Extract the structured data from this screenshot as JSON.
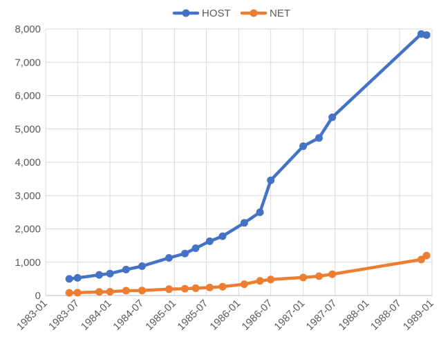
{
  "chart_data": {
    "type": "line",
    "title": "",
    "xlabel": "",
    "ylabel": "",
    "x_ticks": [
      "1983-01",
      "1983-07",
      "1984-01",
      "1984-07",
      "1985-01",
      "1985-07",
      "1986-01",
      "1986-07",
      "1987-01",
      "1987-07",
      "1988-01",
      "1988-07",
      "1989-01"
    ],
    "y_ticks": [
      "0",
      "1,000",
      "2,000",
      "3,000",
      "4,000",
      "5,000",
      "6,000",
      "7,000",
      "8,000"
    ],
    "xlim": [
      "1983-01",
      "1989-01"
    ],
    "ylim": [
      0,
      8000
    ],
    "grid": true,
    "legend_position": "top-center",
    "series": [
      {
        "name": "HOST",
        "color": "#4472C4",
        "points": [
          {
            "x": "1983-05-15",
            "y": 500
          },
          {
            "x": "1983-07-01",
            "y": 530
          },
          {
            "x": "1983-11-01",
            "y": 620
          },
          {
            "x": "1984-01-01",
            "y": 660
          },
          {
            "x": "1984-04-01",
            "y": 780
          },
          {
            "x": "1984-07-01",
            "y": 880
          },
          {
            "x": "1984-12-01",
            "y": 1130
          },
          {
            "x": "1985-03-01",
            "y": 1260
          },
          {
            "x": "1985-05-01",
            "y": 1420
          },
          {
            "x": "1985-07-20",
            "y": 1630
          },
          {
            "x": "1985-10-01",
            "y": 1780
          },
          {
            "x": "1986-02-01",
            "y": 2180
          },
          {
            "x": "1986-05-01",
            "y": 2500
          },
          {
            "x": "1986-07-01",
            "y": 3460
          },
          {
            "x": "1987-01-01",
            "y": 4480
          },
          {
            "x": "1987-04-01",
            "y": 4730
          },
          {
            "x": "1987-06-15",
            "y": 5350
          },
          {
            "x": "1988-11-01",
            "y": 7850
          },
          {
            "x": "1988-12-01",
            "y": 7820
          }
        ]
      },
      {
        "name": "NET",
        "color": "#ED7D31",
        "points": [
          {
            "x": "1983-05-15",
            "y": 80
          },
          {
            "x": "1983-07-01",
            "y": 85
          },
          {
            "x": "1983-11-01",
            "y": 110
          },
          {
            "x": "1984-01-01",
            "y": 115
          },
          {
            "x": "1984-04-01",
            "y": 145
          },
          {
            "x": "1984-07-01",
            "y": 150
          },
          {
            "x": "1984-12-01",
            "y": 190
          },
          {
            "x": "1985-03-01",
            "y": 205
          },
          {
            "x": "1985-05-01",
            "y": 220
          },
          {
            "x": "1985-07-20",
            "y": 240
          },
          {
            "x": "1985-10-01",
            "y": 265
          },
          {
            "x": "1986-02-01",
            "y": 340
          },
          {
            "x": "1986-05-01",
            "y": 440
          },
          {
            "x": "1986-07-01",
            "y": 480
          },
          {
            "x": "1987-01-01",
            "y": 540
          },
          {
            "x": "1987-04-01",
            "y": 580
          },
          {
            "x": "1987-06-15",
            "y": 640
          },
          {
            "x": "1988-11-01",
            "y": 1080
          },
          {
            "x": "1988-12-01",
            "y": 1200
          }
        ]
      }
    ]
  }
}
